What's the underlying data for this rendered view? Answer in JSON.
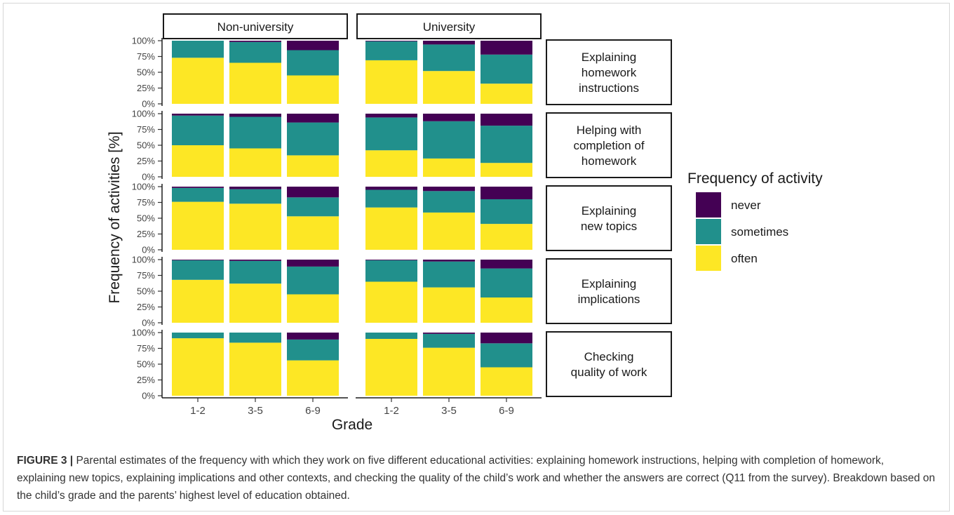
{
  "figure_label": "FIGURE 3 |",
  "caption": "Parental estimates of the frequency with which they work on five different educational activities: explaining homework instructions, helping with completion of homework, explaining new topics, explaining implications and other contexts, and checking the quality of the child’s work and whether the answers are correct (Q11 from the survey). Breakdown based on the child’s grade and the parents’ highest level of education obtained.",
  "chart_data": {
    "type": "bar",
    "stacked": true,
    "facet_columns": [
      "Non-university",
      "University"
    ],
    "facet_rows": [
      [
        "Explaining",
        "homework",
        "instructions"
      ],
      [
        "Helping with",
        "completion of",
        "homework"
      ],
      [
        "Explaining",
        "new topics"
      ],
      [
        "Explaining",
        "implications"
      ],
      [
        "Checking",
        "quality of work"
      ]
    ],
    "categories": [
      "1-2",
      "3-5",
      "6-9"
    ],
    "xlabel": "Grade",
    "ylabel": "Frequency of activities [%]",
    "yticks": [
      "0%",
      "25%",
      "50%",
      "75%",
      "100%"
    ],
    "ylim": [
      0,
      100
    ],
    "legend": {
      "title": "Frequency of activity",
      "position": "right",
      "entries": [
        {
          "name": "never",
          "color": "#440154"
        },
        {
          "name": "sometimes",
          "color": "#21908C"
        },
        {
          "name": "often",
          "color": "#FDE725"
        }
      ]
    },
    "colors": {
      "often": "#FDE725",
      "sometimes": "#21908C",
      "never": "#440154"
    },
    "data": [
      [
        [
          {
            "often": 73,
            "sometimes": 27,
            "never": 0
          },
          {
            "often": 65,
            "sometimes": 33,
            "never": 2
          },
          {
            "often": 45,
            "sometimes": 40,
            "never": 15
          }
        ],
        [
          {
            "often": 69,
            "sometimes": 30,
            "never": 1
          },
          {
            "often": 52,
            "sometimes": 42,
            "never": 6
          },
          {
            "often": 32,
            "sometimes": 46,
            "never": 22
          }
        ]
      ],
      [
        [
          {
            "often": 50,
            "sometimes": 47,
            "never": 3
          },
          {
            "often": 45,
            "sometimes": 50,
            "never": 5
          },
          {
            "often": 34,
            "sometimes": 52,
            "never": 14
          }
        ],
        [
          {
            "often": 42,
            "sometimes": 52,
            "never": 6
          },
          {
            "often": 29,
            "sometimes": 59,
            "never": 12
          },
          {
            "often": 22,
            "sometimes": 59,
            "never": 19
          }
        ]
      ],
      [
        [
          {
            "often": 76,
            "sometimes": 22,
            "never": 2
          },
          {
            "often": 73,
            "sometimes": 23,
            "never": 4
          },
          {
            "often": 53,
            "sometimes": 30,
            "never": 17
          }
        ],
        [
          {
            "often": 67,
            "sometimes": 28,
            "never": 5
          },
          {
            "often": 59,
            "sometimes": 34,
            "never": 7
          },
          {
            "often": 41,
            "sometimes": 39,
            "never": 20
          }
        ]
      ],
      [
        [
          {
            "often": 68,
            "sometimes": 31,
            "never": 1
          },
          {
            "often": 62,
            "sometimes": 36,
            "never": 2
          },
          {
            "often": 45,
            "sometimes": 44,
            "never": 11
          }
        ],
        [
          {
            "often": 65,
            "sometimes": 34,
            "never": 1
          },
          {
            "often": 56,
            "sometimes": 41,
            "never": 3
          },
          {
            "often": 40,
            "sometimes": 46,
            "never": 14
          }
        ]
      ],
      [
        [
          {
            "often": 91,
            "sometimes": 9,
            "never": 0
          },
          {
            "often": 84,
            "sometimes": 16,
            "never": 0
          },
          {
            "often": 56,
            "sometimes": 33,
            "never": 11
          }
        ],
        [
          {
            "often": 90,
            "sometimes": 10,
            "never": 0
          },
          {
            "often": 76,
            "sometimes": 22,
            "never": 2
          },
          {
            "often": 45,
            "sometimes": 38,
            "never": 17
          }
        ]
      ]
    ]
  }
}
